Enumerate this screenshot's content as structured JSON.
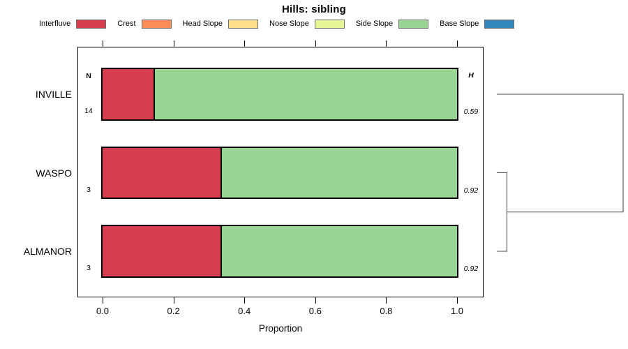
{
  "title": "Hills: sibling",
  "legend": {
    "items": [
      {
        "label": "Interfluve",
        "color": "#D53E4F"
      },
      {
        "label": "Crest",
        "color": "#FC8D59"
      },
      {
        "label": "Head Slope",
        "color": "#FEE08B"
      },
      {
        "label": "Nose Slope",
        "color": "#E6F598"
      },
      {
        "label": "Side Slope",
        "color": "#99D594"
      },
      {
        "label": "Base Slope",
        "color": "#3288BD"
      }
    ]
  },
  "chart_data": {
    "type": "bar",
    "subtype": "horizontal-stacked-proportion",
    "title": "Hills: sibling",
    "xlabel": "Proportion",
    "xlim": [
      0,
      1
    ],
    "x_ticks": [
      0.0,
      0.2,
      0.4,
      0.6,
      0.8,
      1.0
    ],
    "x_tick_labels": [
      "0.0",
      "0.2",
      "0.4",
      "0.6",
      "0.8",
      "1.0"
    ],
    "grid": false,
    "legend_position": "top",
    "categories": [
      "Interfluve",
      "Crest",
      "Head Slope",
      "Nose Slope",
      "Side Slope",
      "Base Slope"
    ],
    "category_colors": {
      "Interfluve": "#D53E4F",
      "Crest": "#FC8D59",
      "Head Slope": "#FEE08B",
      "Nose Slope": "#E6F598",
      "Side Slope": "#99D594",
      "Base Slope": "#3288BD"
    },
    "columns": {
      "left_header": "N",
      "right_header": "H"
    },
    "rows": [
      {
        "label": "INVILLE",
        "n": "14",
        "h": "0.59",
        "segments": [
          {
            "category": "Interfluve",
            "value": 0.143
          },
          {
            "category": "Side Slope",
            "value": 0.857
          }
        ]
      },
      {
        "label": "WASPO",
        "n": "3",
        "h": "0.92",
        "segments": [
          {
            "category": "Interfluve",
            "value": 0.333
          },
          {
            "category": "Side Slope",
            "value": 0.667
          }
        ]
      },
      {
        "label": "ALMANOR",
        "n": "3",
        "h": "0.92",
        "segments": [
          {
            "category": "Interfluve",
            "value": 0.333
          },
          {
            "category": "Side Slope",
            "value": 0.667
          }
        ]
      }
    ],
    "dendrogram": {
      "structure": "((WASPO,ALMANOR),INVILLE)",
      "merges": [
        {
          "members": [
            "WASPO",
            "ALMANOR"
          ],
          "height_fraction": 0.08
        },
        {
          "members": [
            "WASPO+ALMANOR",
            "INVILLE"
          ],
          "height_fraction": 1.0
        }
      ]
    }
  }
}
